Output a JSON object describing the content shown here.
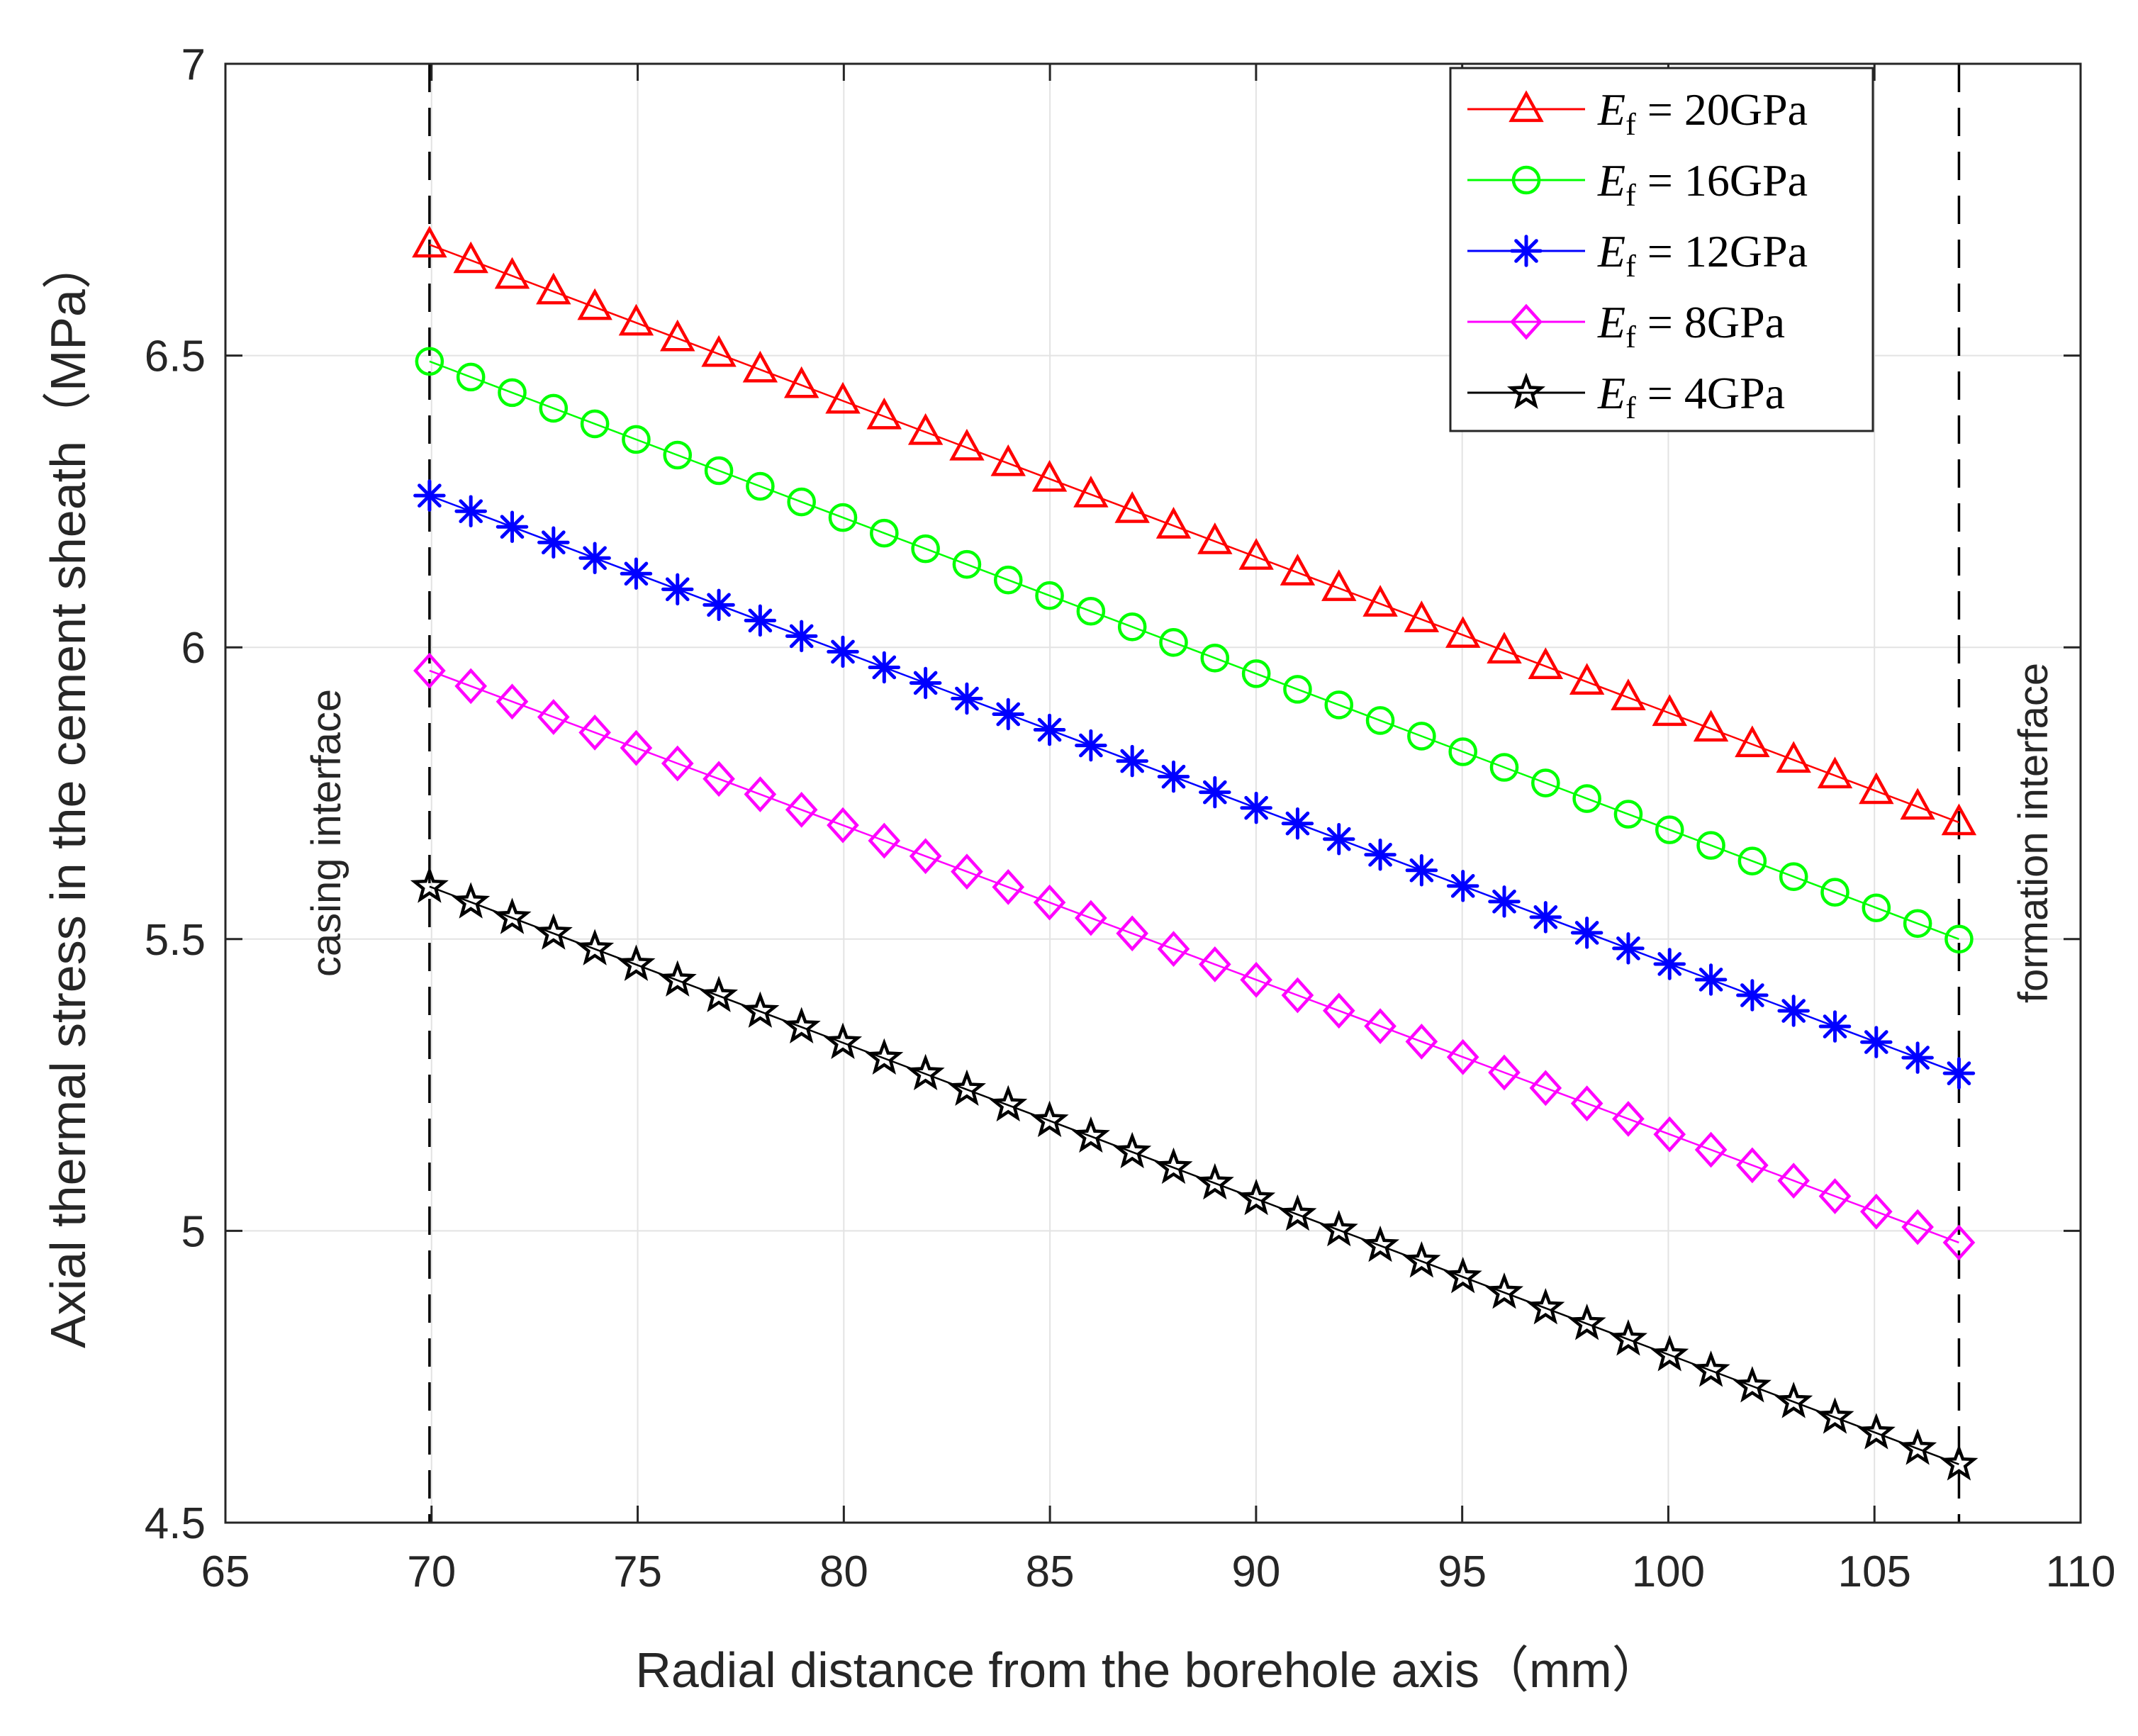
{
  "chart_data": {
    "type": "line",
    "title": "",
    "xlabel": "Radial distance from the borehole axis（mm）",
    "ylabel": "Axial thermal stress in the cement sheath（MPa）",
    "xlim": [
      65,
      110
    ],
    "ylim": [
      4.5,
      7
    ],
    "xticks": [
      65,
      70,
      75,
      80,
      85,
      90,
      95,
      100,
      105,
      110
    ],
    "yticks": [
      4.5,
      5,
      5.5,
      6,
      6.5,
      7
    ],
    "x_tick_labels": [
      "65",
      "70",
      "75",
      "80",
      "85",
      "90",
      "95",
      "100",
      "105",
      "110"
    ],
    "y_tick_labels": [
      "4.5",
      "5",
      "5.5",
      "6",
      "6.5",
      "7"
    ],
    "grid": true,
    "legend_position": "top-right",
    "x_start": 69.95,
    "x_end": 107.05,
    "n_points": 38,
    "annotations": [
      {
        "text": "casing interface",
        "x": 69.95
      },
      {
        "text": "formation interface",
        "x": 107.05
      }
    ],
    "series": [
      {
        "name": "E_f = 20GPa",
        "label_main": "E",
        "label_sub": "f",
        "label_rest": " = 20GPa",
        "color": "#ff0000",
        "marker": "triangle",
        "start": 6.69,
        "end": 5.7
      },
      {
        "name": "E_f = 16GPa",
        "label_main": "E",
        "label_sub": "f",
        "label_rest": " = 16GPa",
        "color": "#00ff00",
        "marker": "circle",
        "start": 6.49,
        "end": 5.5
      },
      {
        "name": "E_f = 12GPa",
        "label_main": "E",
        "label_sub": "f",
        "label_rest": " = 12GPa",
        "color": "#0000ff",
        "marker": "asterisk",
        "start": 6.26,
        "end": 5.27
      },
      {
        "name": "E_f = 8GPa",
        "label_main": "E",
        "label_sub": "f",
        "label_rest": " = 8GPa",
        "color": "#ff00ff",
        "marker": "diamond",
        "start": 5.96,
        "end": 4.98
      },
      {
        "name": "E_f = 4GPa",
        "label_main": "E",
        "label_sub": "f",
        "label_rest": " = 4GPa",
        "color": "#000000",
        "marker": "star",
        "start": 5.59,
        "end": 4.6
      }
    ]
  }
}
